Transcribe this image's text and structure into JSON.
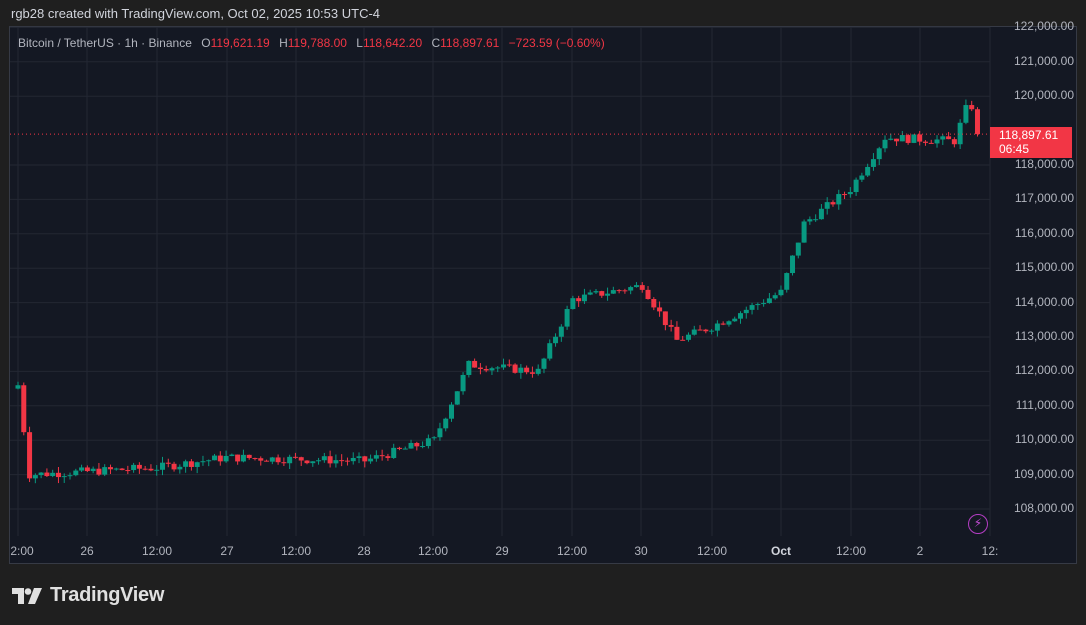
{
  "caption": "rgb28 created with TradingView.com, Oct 02, 2025 10:53 UTC-4",
  "legend": {
    "symbol": "Bitcoin / TetherUS · 1h · Binance",
    "open_label": "O",
    "open": "119,621.19",
    "high_label": "H",
    "high": "119,788.00",
    "low_label": "L",
    "low": "118,642.20",
    "close_label": "C",
    "close": "118,897.61",
    "change": "−723.59 (−0.60%)"
  },
  "price_tag": {
    "price": "118,897.61",
    "countdown": "06:45"
  },
  "brand": "TradingView",
  "colors": {
    "up": "#089981",
    "down": "#f23645",
    "background": "#141823",
    "grid": "#232733",
    "alert": "#b43dc4"
  },
  "chart_data": {
    "type": "candlestick",
    "title": "Bitcoin / TetherUS · 1h · Binance",
    "xlabel": "",
    "ylabel": "",
    "ylim": [
      107500,
      122000
    ],
    "grid": true,
    "y_ticks": [
      "122,000.00",
      "121,000.00",
      "120,000.00",
      "118,000.00",
      "117,000.00",
      "116,000.00",
      "115,000.00",
      "114,000.00",
      "113,000.00",
      "112,000.00",
      "111,000.00",
      "110,000.00",
      "109,000.00",
      "108,000.00"
    ],
    "x_ticks": [
      "2:00",
      "26",
      "12:00",
      "27",
      "12:00",
      "28",
      "12:00",
      "29",
      "12:00",
      "30",
      "12:00",
      "Oct",
      "12:00",
      "2",
      "12:"
    ],
    "last_price": 118897.61,
    "keypoints_close": [
      {
        "t": "Sep 25 12:00",
        "price": 111600
      },
      {
        "t": "Sep 25 14:00",
        "price": 109000
      },
      {
        "t": "Sep 26 12:00",
        "price": 109200
      },
      {
        "t": "Sep 27 00:00",
        "price": 109500
      },
      {
        "t": "Sep 28 00:00",
        "price": 109400
      },
      {
        "t": "Sep 28 12:00",
        "price": 110000
      },
      {
        "t": "Sep 28 18:00",
        "price": 112200
      },
      {
        "t": "Sep 29 06:00",
        "price": 112000
      },
      {
        "t": "Sep 29 12:00",
        "price": 114100
      },
      {
        "t": "Sep 30 00:00",
        "price": 114500
      },
      {
        "t": "Sep 30 06:00",
        "price": 112900
      },
      {
        "t": "Sep 30 12:00",
        "price": 113300
      },
      {
        "t": "Oct 01 00:00",
        "price": 114300
      },
      {
        "t": "Oct 01 04:00",
        "price": 116300
      },
      {
        "t": "Oct 01 12:00",
        "price": 117300
      },
      {
        "t": "Oct 01 18:00",
        "price": 118800
      },
      {
        "t": "Oct 02 06:00",
        "price": 118700
      },
      {
        "t": "Oct 02 08:00",
        "price": 119621
      },
      {
        "t": "Oct 02 10:00",
        "price": 118897.61
      }
    ]
  }
}
